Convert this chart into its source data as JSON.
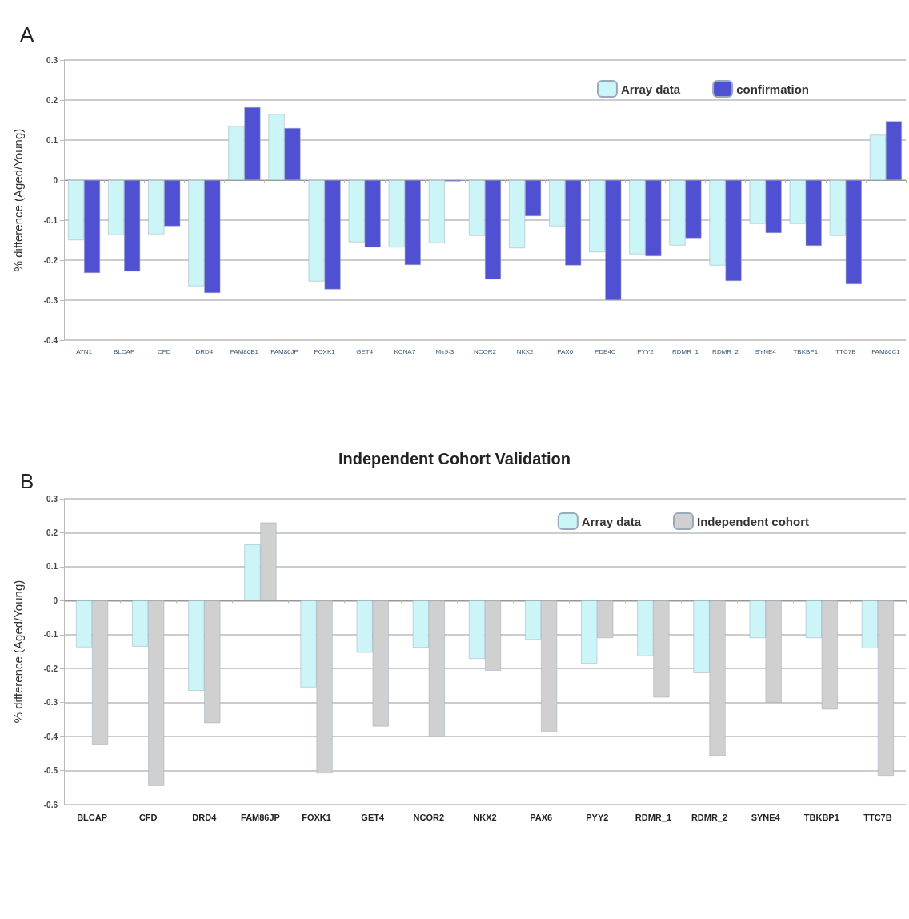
{
  "chart_data": [
    {
      "type": "bar",
      "annotations": [
        "A"
      ],
      "ylabel": "% difference (Aged/Young)",
      "categories": [
        "ATN1",
        "BLCAP",
        "CFD",
        "DRD4",
        "FAM86B1",
        "FAM86JP",
        "FOXK1",
        "GET4",
        "KCNA7",
        "Mir9-3",
        "NCOR2",
        "NKX2",
        "PAX6",
        "PDE4C",
        "PYY2",
        "RDMR_1",
        "RDMR_2",
        "SYNE4",
        "TBKBP1",
        "TTC7B",
        "FAM86C1"
      ],
      "series": [
        {
          "name": "Array data",
          "color": "#ccf5f8",
          "values": [
            -0.15,
            -0.137,
            -0.135,
            -0.265,
            0.135,
            0.165,
            -0.253,
            -0.155,
            -0.168,
            -0.157,
            -0.139,
            -0.17,
            -0.115,
            -0.18,
            -0.185,
            -0.163,
            -0.213,
            -0.109,
            -0.109,
            -0.139,
            0.113
          ]
        },
        {
          "name": "confirmation",
          "color": "#5050d2",
          "values": [
            -0.232,
            -0.228,
            -0.115,
            -0.282,
            0.182,
            0.13,
            -0.273,
            -0.168,
            -0.212,
            -0.003,
            -0.248,
            -0.09,
            -0.213,
            -0.3,
            -0.19,
            -0.145,
            -0.252,
            -0.132,
            -0.164,
            -0.26,
            0.147
          ]
        }
      ],
      "ylim": [
        -0.4,
        0.3
      ],
      "yticks": [
        -0.4,
        -0.3,
        -0.2,
        -0.1,
        0,
        0.1,
        0.2,
        0.3
      ],
      "grid": "y",
      "legend": "top right"
    },
    {
      "type": "bar",
      "title": "Independent Cohort Validation",
      "annotations": [
        "B"
      ],
      "ylabel": "% difference (Aged/Young)",
      "categories": [
        "BLCAP",
        "CFD",
        "DRD4",
        "FAM86JP",
        "FOXK1",
        "GET4",
        "NCOR2",
        "NKX2",
        "PAX6",
        "PYY2",
        "RDMR_1",
        "RDMR_2",
        "SYNE4",
        "TBKBP1",
        "TTC7B"
      ],
      "series": [
        {
          "name": "Array data",
          "color": "#ccf5f8",
          "values": [
            -0.137,
            -0.135,
            -0.265,
            0.165,
            -0.255,
            -0.153,
            -0.138,
            -0.171,
            -0.115,
            -0.185,
            -0.163,
            -0.213,
            -0.11,
            -0.11,
            -0.14
          ]
        },
        {
          "name": "Independent cohort",
          "color": "#d0d0d0",
          "values": [
            -0.425,
            -0.545,
            -0.36,
            0.23,
            -0.508,
            -0.37,
            -0.4,
            -0.206,
            -0.387,
            -0.11,
            -0.285,
            -0.457,
            -0.3,
            -0.32,
            -0.515
          ]
        }
      ],
      "ylim": [
        -0.6,
        0.3
      ],
      "yticks": [
        -0.6,
        -0.5,
        -0.4,
        -0.3,
        -0.2,
        -0.1,
        0,
        0.1,
        0.2,
        0.3
      ],
      "grid": "y",
      "legend": "top right"
    }
  ]
}
